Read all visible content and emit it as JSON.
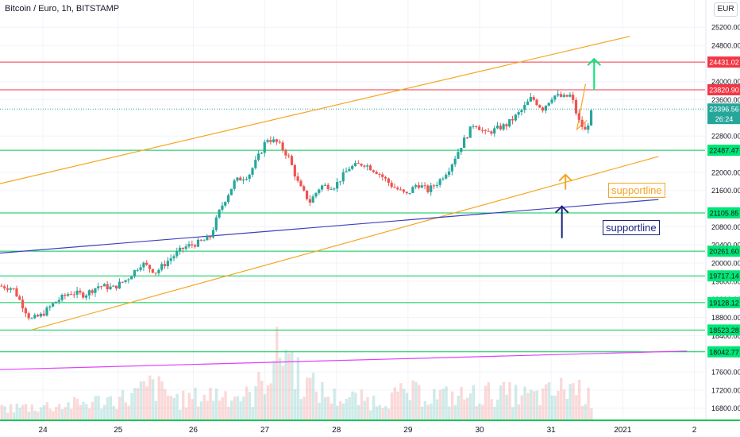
{
  "title": "Bitcoin / Euro, 1h, BITSTAMP",
  "currency": "EUR",
  "chart_data": {
    "type": "candlestick",
    "ylim": [
      16550,
      25800
    ],
    "x_ticks": [
      {
        "label": "24",
        "t": 0.6
      },
      {
        "label": "25",
        "t": 1.65
      },
      {
        "label": "26",
        "t": 2.7
      },
      {
        "label": "27",
        "t": 3.7
      },
      {
        "label": "28",
        "t": 4.7
      },
      {
        "label": "29",
        "t": 5.7
      },
      {
        "label": "30",
        "t": 6.7
      },
      {
        "label": "31",
        "t": 7.7
      },
      {
        "label": "2021",
        "t": 8.7
      },
      {
        "label": "2",
        "t": 9.7
      }
    ],
    "y_ticks": [
      25200,
      24800,
      24000,
      23600,
      22800,
      22000,
      21600,
      20800,
      20400,
      20000,
      19600,
      19200,
      18800,
      18400,
      17600,
      17200,
      16800
    ],
    "horizontal_levels": [
      {
        "value": 24431.02,
        "label": "24431.02",
        "color": "#f23645"
      },
      {
        "value": 23820.9,
        "label": "23820.90",
        "color": "#f23645"
      },
      {
        "value": 22487.47,
        "label": "22487.47",
        "color": "#00c853"
      },
      {
        "value": 21105.85,
        "label": "21105.85",
        "color": "#00c853"
      },
      {
        "value": 20261.6,
        "label": "20261.60",
        "color": "#00c853"
      },
      {
        "value": 19717.14,
        "label": "19717.14",
        "color": "#00c853"
      },
      {
        "value": 19128.12,
        "label": "19128.12",
        "color": "#00c853"
      },
      {
        "value": 18523.28,
        "label": "18523.28",
        "color": "#00c853"
      },
      {
        "value": 18042.77,
        "label": "18042.77",
        "color": "#00c853"
      }
    ],
    "last_price": {
      "value": 23396.56,
      "label": "23396.56",
      "countdown": "26:24",
      "color": "#26a69a"
    },
    "trend_lines": [
      {
        "name": "orange-upper-channel",
        "color": "#f5a623",
        "t1": 0,
        "v1": 21750,
        "t2": 8.8,
        "v2": 25000
      },
      {
        "name": "orange-lower-channel",
        "color": "#f5a623",
        "t1": 0.45,
        "v1": 18530,
        "t2": 9.2,
        "v2": 22350
      },
      {
        "name": "blue-supportline",
        "color": "#3f3fbf",
        "t1": 0,
        "v1": 20220,
        "t2": 9.2,
        "v2": 21400
      },
      {
        "name": "magenta-line",
        "color": "#e040fb",
        "t1": 0,
        "v1": 17650,
        "t2": 9.6,
        "v2": 18060
      }
    ],
    "annotations": [
      {
        "text": "supportline",
        "color": "#f5a623"
      },
      {
        "text": "supportline",
        "color": "#1a237e"
      }
    ],
    "arrows": [
      {
        "name": "green-up-arrow",
        "color": "#00e676",
        "t": 8.3,
        "from": 23820,
        "to": 24500
      },
      {
        "name": "orange-up-arrow",
        "color": "#f5a623",
        "t": 7.9,
        "from": 21620,
        "to": 21950
      },
      {
        "name": "blue-up-arrow",
        "color": "#1a237e",
        "t": 7.85,
        "from": 20550,
        "to": 21250
      }
    ],
    "colors": {
      "up": "#26a69a",
      "down": "#ef5350",
      "grid": "#f0f3fa"
    },
    "key_points": [
      [
        0.0,
        19500
      ],
      [
        0.2,
        19450
      ],
      [
        0.45,
        18750
      ],
      [
        0.6,
        18850
      ],
      [
        0.8,
        19150
      ],
      [
        1.0,
        19350
      ],
      [
        1.2,
        19300
      ],
      [
        1.4,
        19500
      ],
      [
        1.6,
        19450
      ],
      [
        1.8,
        19650
      ],
      [
        2.0,
        20000
      ],
      [
        2.2,
        19800
      ],
      [
        2.4,
        20100
      ],
      [
        2.6,
        20350
      ],
      [
        2.8,
        20450
      ],
      [
        2.95,
        20550
      ],
      [
        3.1,
        21200
      ],
      [
        3.3,
        21800
      ],
      [
        3.5,
        21950
      ],
      [
        3.65,
        22400
      ],
      [
        3.75,
        22750
      ],
      [
        3.9,
        22650
      ],
      [
        4.05,
        22350
      ],
      [
        4.2,
        21700
      ],
      [
        4.35,
        21350
      ],
      [
        4.5,
        21700
      ],
      [
        4.7,
        21700
      ],
      [
        4.9,
        22100
      ],
      [
        5.1,
        22200
      ],
      [
        5.3,
        22000
      ],
      [
        5.5,
        21700
      ],
      [
        5.7,
        21500
      ],
      [
        5.85,
        21750
      ],
      [
        6.0,
        21600
      ],
      [
        6.15,
        21800
      ],
      [
        6.3,
        22100
      ],
      [
        6.5,
        22700
      ],
      [
        6.65,
        23100
      ],
      [
        6.8,
        22850
      ],
      [
        6.95,
        22950
      ],
      [
        7.1,
        23050
      ],
      [
        7.3,
        23350
      ],
      [
        7.45,
        23650
      ],
      [
        7.6,
        23400
      ],
      [
        7.75,
        23700
      ],
      [
        7.9,
        23650
      ],
      [
        8.0,
        23700
      ],
      [
        8.1,
        23150
      ],
      [
        8.2,
        22900
      ],
      [
        8.28,
        23300
      ]
    ],
    "volume_profile": [
      [
        0.0,
        0.15
      ],
      [
        1.0,
        0.2
      ],
      [
        1.8,
        0.3
      ],
      [
        2.1,
        0.45
      ],
      [
        2.5,
        0.25
      ],
      [
        3.0,
        0.35
      ],
      [
        3.5,
        0.3
      ],
      [
        3.95,
        1.0
      ],
      [
        4.2,
        0.5
      ],
      [
        4.6,
        0.3
      ],
      [
        5.2,
        0.25
      ],
      [
        5.7,
        0.35
      ],
      [
        6.3,
        0.3
      ],
      [
        6.9,
        0.35
      ],
      [
        7.5,
        0.3
      ],
      [
        8.0,
        0.45
      ],
      [
        8.3,
        0.2
      ]
    ]
  }
}
